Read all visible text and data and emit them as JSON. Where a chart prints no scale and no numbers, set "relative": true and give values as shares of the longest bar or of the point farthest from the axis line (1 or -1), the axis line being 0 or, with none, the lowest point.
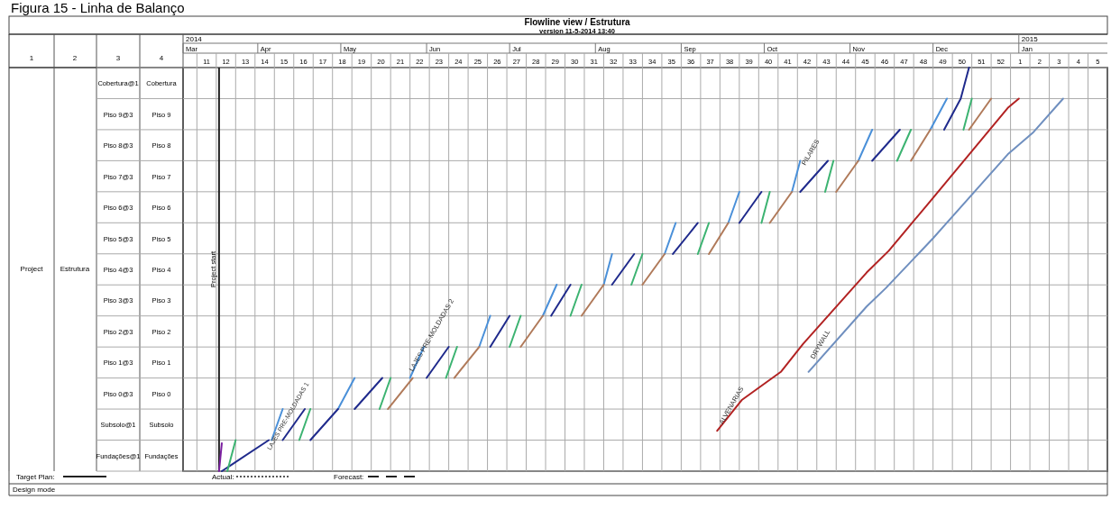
{
  "chart_data": {
    "type": "line",
    "title": "Flowline view / Estrutura",
    "subtitle": "version 11-5-2014 13:40",
    "annotations": [
      "Figura 15 - Linha de Balanço",
      "2014",
      "2015",
      "1",
      "2",
      "3",
      "4",
      "Project",
      "Estrutura",
      "Target Plan:",
      "Actual:",
      "Forecast:",
      "Design mode",
      "Cobertura@1",
      "Piso 9@3",
      "Piso 8@3",
      "Piso 7@3",
      "Piso 6@3",
      "Piso 5@3",
      "Piso 4@3",
      "Piso 3@3",
      "Piso 2@3",
      "Piso 1@3",
      "Piso 0@3",
      "Subsolo@1",
      "Fundações@1",
      "LAJES PRE-MOLDADAS 1",
      "Cobertura",
      "Piso 9",
      "Piso 8",
      "Piso 7",
      "Piso 6",
      "Piso 5",
      "Piso 4",
      "Piso 3",
      "Piso 2",
      "Piso 1",
      "Piso 0",
      "Subsolo",
      "Fundações",
      "PILARES",
      {
        "text": "ALVENARIAS",
        "x": "2014-09-16",
        "y": 0.115
      },
      {
        "text": "DRYWALL",
        "x": "2014-10-19",
        "y": 0.277
      },
      {
        "text": "LAJES PRE-MOLDADAS 2",
        "x": "2014-05-27",
        "y": 0.246
      }
    ],
    "relative": true,
    "xlim": [
      "2014-03-05",
      "2015-02-02"
    ],
    "xticks": [
      {
        "value": "2014-03-13T12:00",
        "label": "11"
      },
      {
        "value": "2014-03-20T12:00",
        "label": "12"
      },
      {
        "value": "2014-03-27T12:00",
        "label": "13"
      },
      {
        "value": "2014-04-03T12:00",
        "label": "14"
      },
      {
        "value": "2014-04-10T12:00",
        "label": "15"
      },
      {
        "value": "2014-04-17T12:00",
        "label": "16"
      },
      {
        "value": "2014-04-24T12:00",
        "label": "17"
      },
      {
        "value": "2014-05-01T12:00",
        "label": "18"
      },
      {
        "value": "2014-05-08T12:00",
        "label": "19"
      },
      {
        "value": "2014-05-15T12:00",
        "label": "20"
      },
      {
        "value": "2014-05-22T12:00",
        "label": "21"
      },
      {
        "value": "2014-05-29T12:00",
        "label": "22"
      },
      {
        "value": "2014-06-05T12:00",
        "label": "23"
      },
      {
        "value": "2014-06-12T12:00",
        "label": "24"
      },
      {
        "value": "2014-06-19T12:00",
        "label": "25"
      },
      {
        "value": "2014-06-26T12:00",
        "label": "26"
      },
      {
        "value": "2014-07-03T12:00",
        "label": "27"
      },
      {
        "value": "2014-07-10T12:00",
        "label": "28"
      },
      {
        "value": "2014-07-17T12:00",
        "label": "29"
      },
      {
        "value": "2014-07-24T12:00",
        "label": "30"
      },
      {
        "value": "2014-07-31T12:00",
        "label": "31"
      },
      {
        "value": "2014-08-07T12:00",
        "label": "32"
      },
      {
        "value": "2014-08-14T12:00",
        "label": "33"
      },
      {
        "value": "2014-08-21T12:00",
        "label": "34"
      },
      {
        "value": "2014-08-28T12:00",
        "label": "35"
      },
      {
        "value": "2014-09-04T12:00",
        "label": "36"
      },
      {
        "value": "2014-09-11T12:00",
        "label": "37"
      },
      {
        "value": "2014-09-18T12:00",
        "label": "38"
      },
      {
        "value": "2014-09-25T12:00",
        "label": "39"
      },
      {
        "value": "2014-10-02T12:00",
        "label": "40"
      },
      {
        "value": "2014-10-09T12:00",
        "label": "41"
      },
      {
        "value": "2014-10-16T12:00",
        "label": "42"
      },
      {
        "value": "2014-10-23T12:00",
        "label": "43"
      },
      {
        "value": "2014-10-30T12:00",
        "label": "44"
      },
      {
        "value": "2014-11-06T12:00",
        "label": "45"
      },
      {
        "value": "2014-11-13T12:00",
        "label": "46"
      },
      {
        "value": "2014-11-20T12:00",
        "label": "47"
      },
      {
        "value": "2014-11-27T12:00",
        "label": "48"
      },
      {
        "value": "2014-12-04T12:00",
        "label": "49"
      },
      {
        "value": "2014-12-11T12:00",
        "label": "50"
      },
      {
        "value": "2014-12-18T12:00",
        "label": "51"
      },
      {
        "value": "2014-12-25T12:00",
        "label": "52"
      },
      {
        "value": "2015-01-01T12:00",
        "label": "1"
      },
      {
        "value": "2015-01-08T12:00",
        "label": "2"
      },
      {
        "value": "2015-01-15T12:00",
        "label": "3"
      },
      {
        "value": "2015-01-22T12:00",
        "label": "4"
      },
      {
        "value": "2015-01-29T12:00",
        "label": "5"
      }
    ],
    "x2lim": [
      "2014-03-05",
      "2015-02-02"
    ],
    "x2ticks": [
      {
        "value": "2014-03-05",
        "label": "Mar"
      },
      {
        "value": "2014-04-01",
        "label": "Apr"
      },
      {
        "value": "2014-05-01",
        "label": "May"
      },
      {
        "value": "2014-06-01",
        "label": "Jun"
      },
      {
        "value": "2014-07-01",
        "label": "Jul"
      },
      {
        "value": "2014-08-01",
        "label": "Aug"
      },
      {
        "value": "2014-09-01",
        "label": "Sep"
      },
      {
        "value": "2014-10-01",
        "label": "Oct"
      },
      {
        "value": "2014-11-01",
        "label": "Nov"
      },
      {
        "value": "2014-12-01",
        "label": "Dec"
      },
      {
        "value": "2015-01-01",
        "label": "Jan"
      }
    ],
    "ref_lines": [
      {
        "axis": "x",
        "value": "2014-03-18",
        "label": "Project start",
        "color": "#222222"
      }
    ],
    "grid": true,
    "line_style": "solid",
    "marker": "none",
    "series": [
      {
        "color": "#4a90d9",
        "x": [
          "2014-04-06",
          "2014-04-10",
          null,
          "2014-04-30",
          "2014-05-06",
          null,
          "2014-05-26",
          "2014-05-31",
          null,
          "2014-06-20",
          "2014-06-24",
          null,
          "2014-07-13",
          "2014-07-18",
          null,
          "2014-08-04",
          "2014-08-07",
          null,
          "2014-08-26",
          "2014-08-30",
          null,
          "2014-09-18",
          "2014-09-22",
          null,
          "2014-10-11",
          "2014-10-14",
          null,
          "2014-11-04",
          "2014-11-09",
          null,
          "2014-11-30",
          "2014-12-06"
        ],
        "values": [
          0.077,
          0.154,
          null,
          0.154,
          0.231,
          null,
          0.231,
          0.308,
          null,
          0.308,
          0.385,
          null,
          0.385,
          0.462,
          null,
          0.462,
          0.538,
          null,
          0.538,
          0.615,
          null,
          0.615,
          0.692,
          null,
          0.692,
          0.769,
          null,
          0.769,
          0.846,
          null,
          0.846,
          0.923
        ]
      },
      {
        "color": "#1f2a8c",
        "x": [
          "2014-03-19",
          "2014-04-05",
          null,
          "2014-04-10",
          "2014-04-18",
          null,
          "2014-04-20",
          "2014-04-30",
          null,
          "2014-05-06",
          "2014-05-16",
          null,
          "2014-06-01",
          "2014-06-09",
          null,
          "2014-06-24",
          "2014-07-01",
          null,
          "2014-07-16",
          "2014-07-23",
          null,
          "2014-08-07",
          "2014-08-15",
          null,
          "2014-08-29",
          "2014-09-07",
          null,
          "2014-09-22",
          "2014-09-30",
          null,
          "2014-10-14",
          "2014-10-24",
          null,
          "2014-11-09",
          "2014-11-19",
          null,
          "2014-12-05",
          "2014-12-11",
          "2014-12-14"
        ],
        "values": [
          0,
          0.077,
          null,
          0.077,
          0.154,
          null,
          0.077,
          0.154,
          null,
          0.154,
          0.231,
          null,
          0.231,
          0.308,
          null,
          0.308,
          0.385,
          null,
          0.385,
          0.462,
          null,
          0.462,
          0.538,
          null,
          0.538,
          0.615,
          null,
          0.615,
          0.692,
          null,
          0.692,
          0.769,
          null,
          0.769,
          0.846,
          null,
          0.846,
          0.923,
          1
        ]
      },
      {
        "color": "#3cb371",
        "x": [
          "2014-03-21",
          "2014-03-24",
          null,
          "2014-04-16",
          "2014-04-20",
          null,
          "2014-05-15",
          "2014-05-19",
          null,
          "2014-06-08",
          "2014-06-12",
          null,
          "2014-07-01",
          "2014-07-05",
          null,
          "2014-07-23",
          "2014-07-27",
          null,
          "2014-08-14",
          "2014-08-18",
          null,
          "2014-09-07",
          "2014-09-11",
          null,
          "2014-09-30",
          "2014-10-03",
          null,
          "2014-10-23",
          "2014-10-26",
          null,
          "2014-11-18",
          "2014-11-23",
          null,
          "2014-12-12",
          "2014-12-15"
        ],
        "values": [
          0,
          0.077,
          null,
          0.077,
          0.154,
          null,
          0.154,
          0.231,
          null,
          0.231,
          0.308,
          null,
          0.308,
          0.385,
          null,
          0.385,
          0.462,
          null,
          0.462,
          0.538,
          null,
          0.538,
          0.615,
          null,
          0.615,
          0.692,
          null,
          0.692,
          0.769,
          null,
          0.769,
          0.846,
          null,
          0.846,
          0.923
        ]
      },
      {
        "color": "#b07a5a",
        "x": [
          "2014-05-18",
          "2014-05-27",
          null,
          "2014-06-11",
          "2014-06-20",
          null,
          "2014-07-05",
          "2014-07-13",
          null,
          "2014-07-27",
          "2014-08-04",
          null,
          "2014-08-18",
          "2014-08-26",
          null,
          "2014-09-11",
          "2014-09-18",
          null,
          "2014-10-03",
          "2014-10-11",
          null,
          "2014-10-27",
          "2014-11-04",
          null,
          "2014-11-23",
          "2014-11-30",
          null,
          "2014-12-14",
          "2014-12-22"
        ],
        "values": [
          0.154,
          0.231,
          null,
          0.231,
          0.308,
          null,
          0.308,
          0.385,
          null,
          0.385,
          0.462,
          null,
          0.462,
          0.538,
          null,
          0.538,
          0.615,
          null,
          0.615,
          0.692,
          null,
          0.692,
          0.769,
          null,
          0.769,
          0.846,
          null,
          0.846,
          0.923
        ]
      },
      {
        "color": "#7a1fa0",
        "x": [
          "2014-03-18",
          "2014-03-19"
        ],
        "values": [
          0,
          0.069
        ]
      },
      {
        "color": "#b22222",
        "x": [
          "2014-09-14",
          "2014-09-23",
          "2014-10-07",
          "2014-10-15",
          "2014-11-07",
          "2014-11-15",
          "2014-11-30",
          "2014-12-28",
          "2015-01-01"
        ],
        "values": [
          0.1,
          0.177,
          0.246,
          0.315,
          0.492,
          0.546,
          0.669,
          0.9,
          0.923
        ]
      },
      {
        "color": "#6f8fbf",
        "x": [
          "2014-10-17",
          "2014-11-07",
          "2014-11-14",
          "2014-12-01",
          "2014-12-28",
          "2015-01-06",
          "2015-01-17"
        ],
        "values": [
          0.246,
          0.408,
          0.454,
          0.577,
          0.785,
          0.838,
          0.923
        ]
      }
    ]
  }
}
